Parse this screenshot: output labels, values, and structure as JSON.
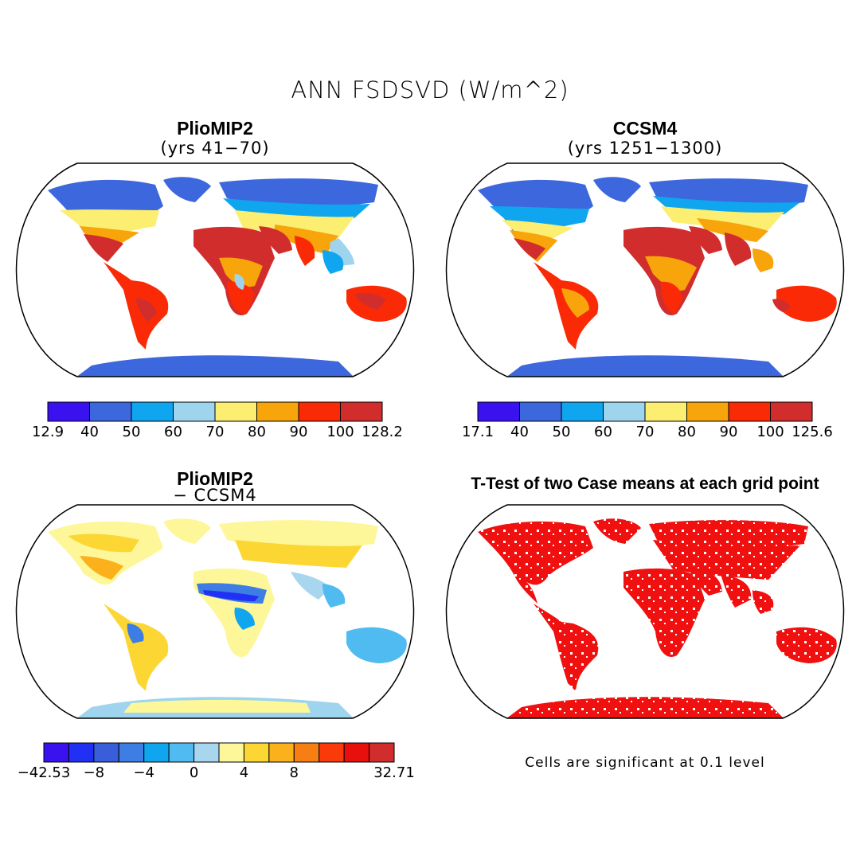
{
  "title": "ANN FSDSVD (W/m^2)",
  "panels": {
    "top_left": {
      "title": "PlioMIP2",
      "subtitle": "(yrs 41−70)",
      "colorbar": {
        "labels": [
          "12.9",
          "40",
          "50",
          "60",
          "70",
          "80",
          "90",
          "100",
          "128.2"
        ],
        "colors": [
          "#3a12f0",
          "#3d67dc",
          "#10a5ef",
          "#9fd4ee",
          "#fbee70",
          "#f8a40b",
          "#fb2a06",
          "#d12d2d"
        ]
      }
    },
    "top_right": {
      "title": "CCSM4",
      "subtitle": "(yrs 1251−1300)",
      "colorbar": {
        "labels": [
          "17.1",
          "40",
          "50",
          "60",
          "70",
          "80",
          "90",
          "100",
          "125.6"
        ],
        "colors": [
          "#3a12f0",
          "#3d67dc",
          "#10a5ef",
          "#9fd4ee",
          "#fbee70",
          "#f8a40b",
          "#fb2a06",
          "#d12d2d"
        ]
      }
    },
    "bottom_left": {
      "title": "PlioMIP2",
      "subtitle": "− CCSM4",
      "colorbar": {
        "labels": [
          "−42.53",
          "−8",
          "−4",
          "0",
          "4",
          "8",
          "32.71"
        ],
        "colors": [
          "#3a12f0",
          "#2030f4",
          "#3a5ed9",
          "#3d7de4",
          "#10a5ef",
          "#4fbbf0",
          "#a7d6ee",
          "#fdf79a",
          "#fcd734",
          "#fab11b",
          "#f77e13",
          "#fb3a0a",
          "#e8100c",
          "#d12d2d"
        ]
      }
    },
    "bottom_right": {
      "title": "T-Test of two Case means at each grid point",
      "note": "Cells are significant at 0.1 level",
      "colors": {
        "significant": "#f01010"
      }
    }
  }
}
